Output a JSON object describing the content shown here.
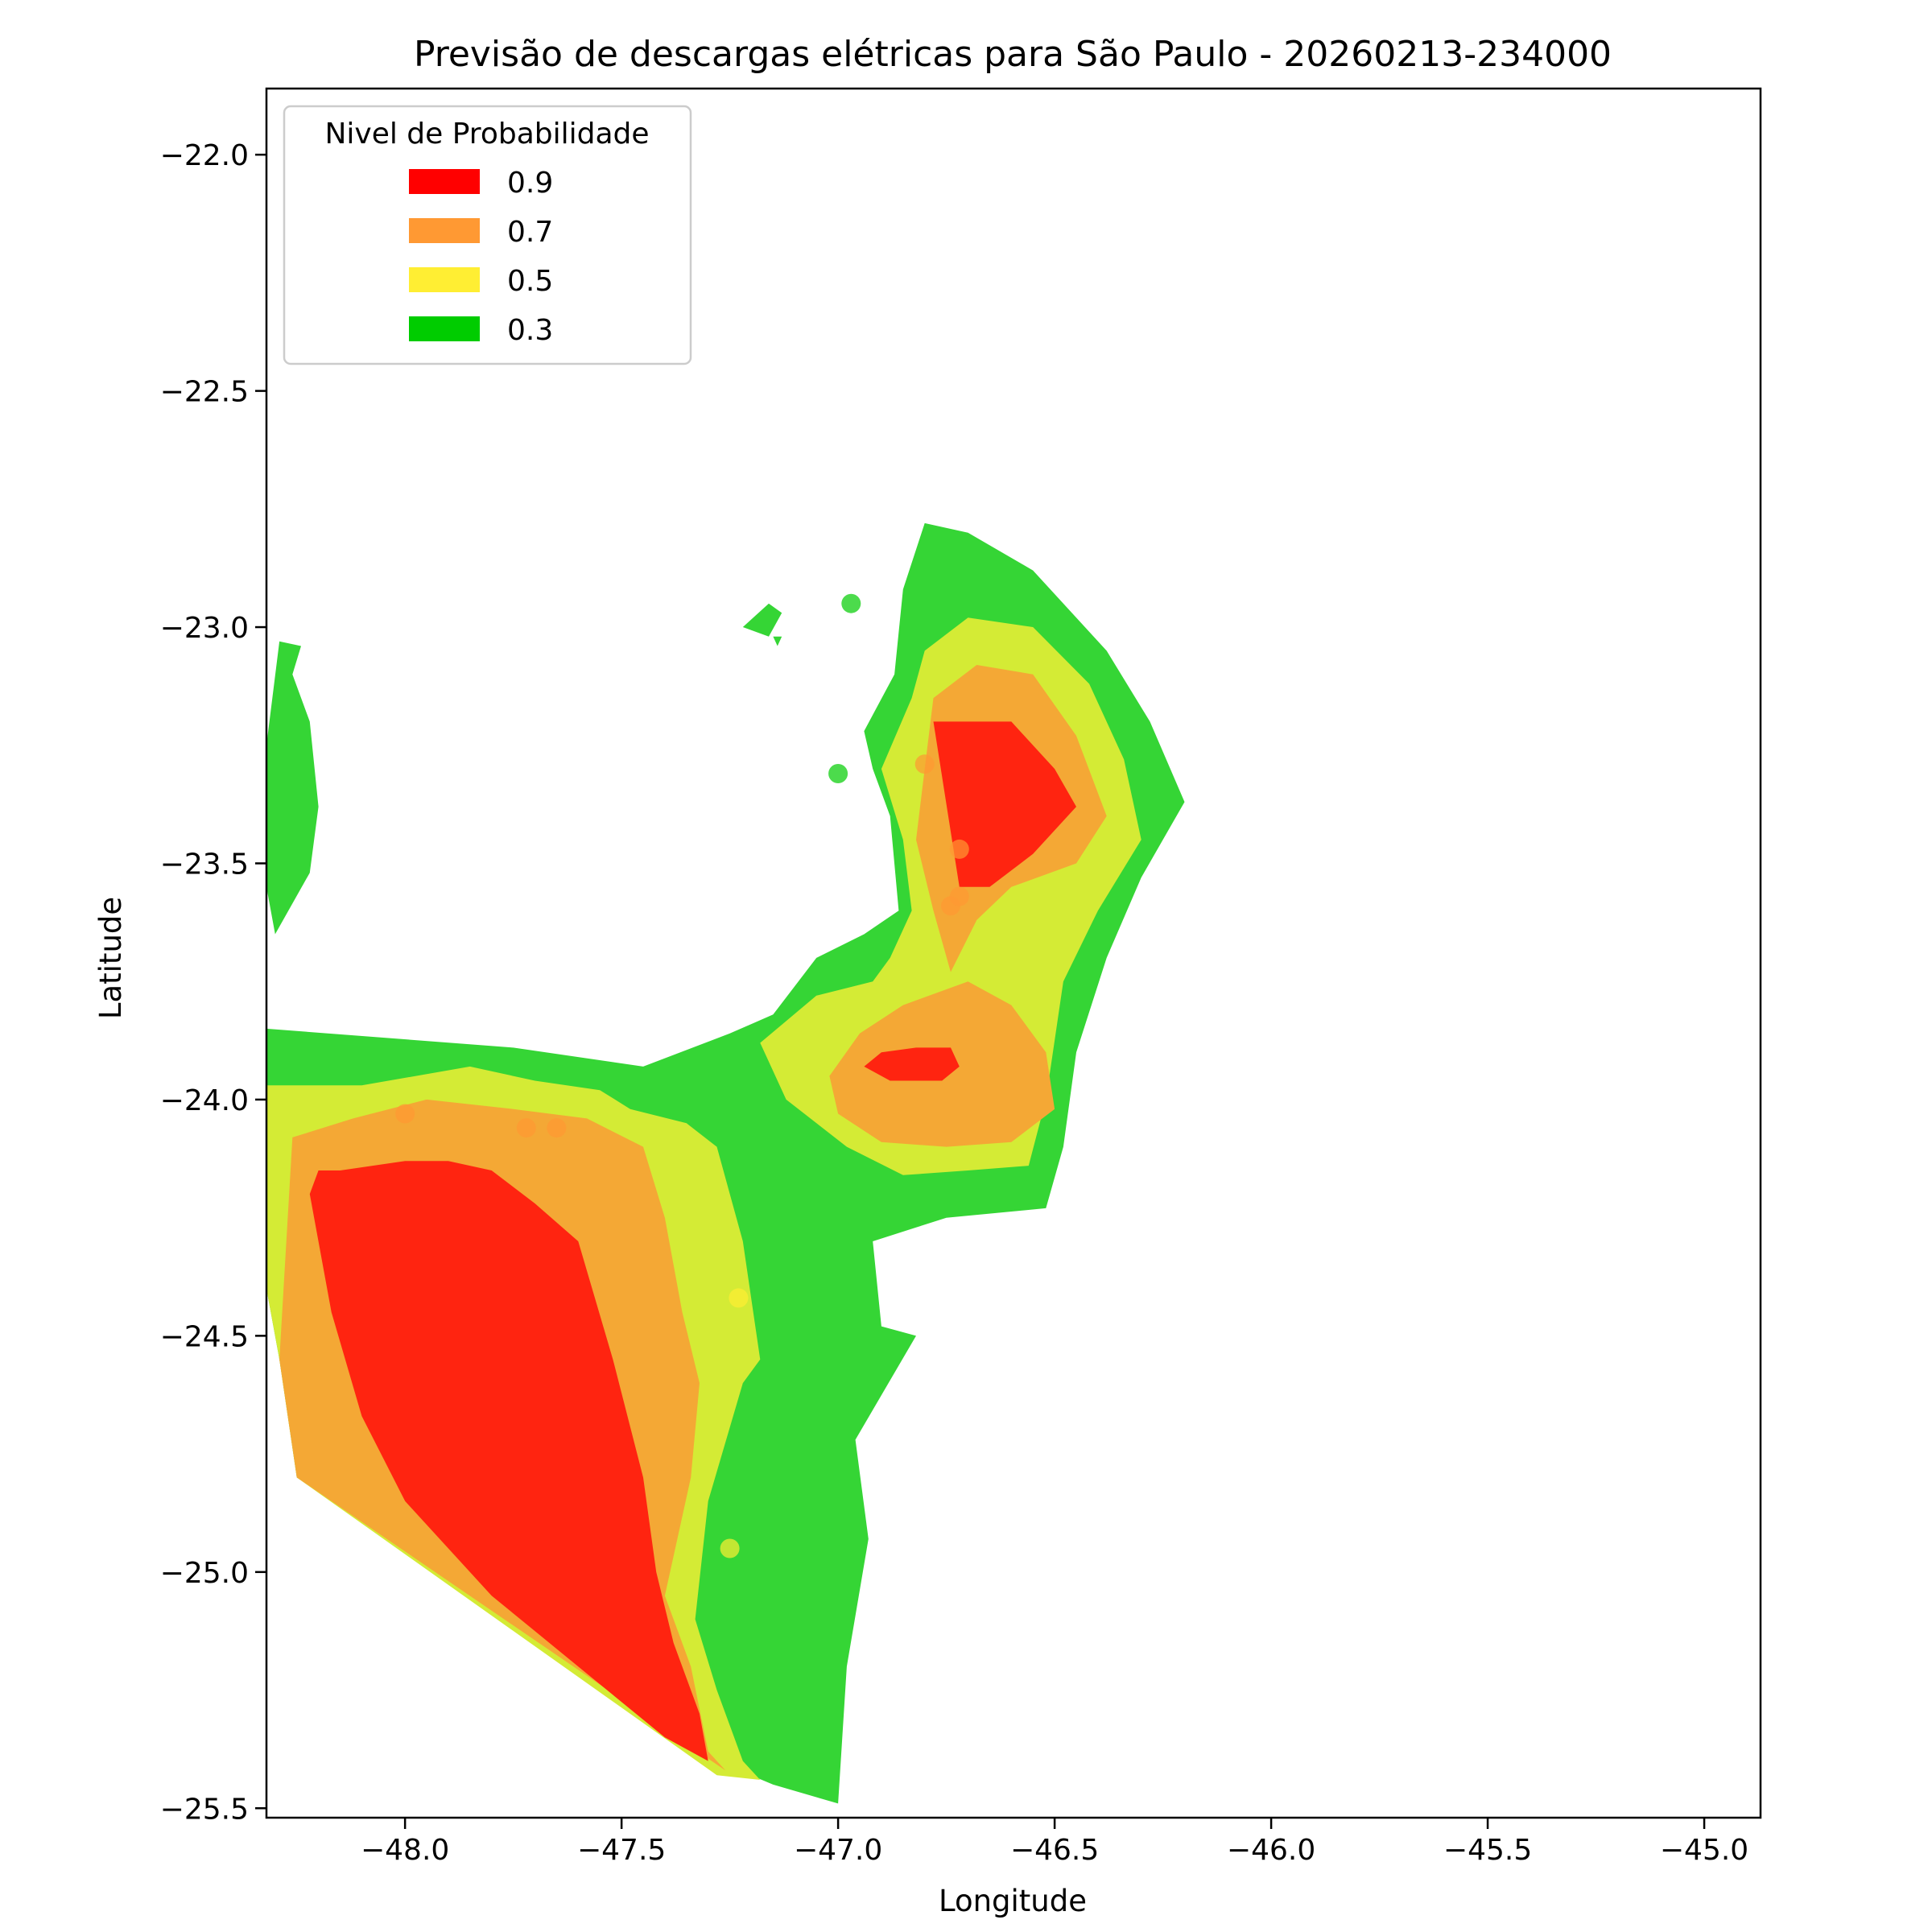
{
  "chart_data": {
    "type": "heatmap",
    "title": "Previsão de descargas elétricas para São Paulo - 20260213-234000",
    "xlabel": "Longitude",
    "ylabel": "Latitude",
    "xlim": [
      -48.32,
      -44.87
    ],
    "ylim": [
      -25.52,
      -21.86
    ],
    "x_ticks": [
      {
        "value": -48.0,
        "label": "−48.0"
      },
      {
        "value": -47.5,
        "label": "−47.5"
      },
      {
        "value": -47.0,
        "label": "−47.0"
      },
      {
        "value": -46.5,
        "label": "−46.5"
      },
      {
        "value": -46.0,
        "label": "−46.0"
      },
      {
        "value": -45.5,
        "label": "−45.5"
      },
      {
        "value": -45.0,
        "label": "−45.0"
      }
    ],
    "y_ticks": [
      {
        "value": -22.0,
        "label": "−22.0"
      },
      {
        "value": -22.5,
        "label": "−22.5"
      },
      {
        "value": -23.0,
        "label": "−23.0"
      },
      {
        "value": -23.5,
        "label": "−23.5"
      },
      {
        "value": -24.0,
        "label": "−24.0"
      },
      {
        "value": -24.5,
        "label": "−24.5"
      },
      {
        "value": -25.0,
        "label": "−25.0"
      },
      {
        "value": -25.5,
        "label": "−25.5"
      }
    ],
    "legend": {
      "title": "Nivel de Probabilidade",
      "position": "upper-left",
      "entries": [
        {
          "label": "0.9",
          "color": "#ff0000"
        },
        {
          "label": "0.7",
          "color": "#ff9933"
        },
        {
          "label": "0.5",
          "color": "#ffee33"
        },
        {
          "label": "0.3",
          "color": "#00cc00"
        }
      ]
    },
    "fill_colors": {
      "0.3": "#35d535",
      "0.5": "#d4eb35",
      "0.7": "#f4a835",
      "0.9": "#ff2410"
    },
    "regions": [
      {
        "level": "0.3",
        "coords": [
          [
            -48.32,
            -23.85
          ],
          [
            -47.75,
            -23.89
          ],
          [
            -47.45,
            -23.93
          ],
          [
            -47.25,
            -23.86
          ],
          [
            -47.15,
            -23.82
          ],
          [
            -47.05,
            -23.7
          ],
          [
            -46.94,
            -23.65
          ],
          [
            -46.86,
            -23.6
          ],
          [
            -46.88,
            -23.4
          ],
          [
            -46.92,
            -23.3
          ],
          [
            -46.94,
            -23.22
          ],
          [
            -46.87,
            -23.1
          ],
          [
            -46.85,
            -22.92
          ],
          [
            -46.8,
            -22.78
          ],
          [
            -46.7,
            -22.8
          ],
          [
            -46.55,
            -22.88
          ],
          [
            -46.38,
            -23.05
          ],
          [
            -46.28,
            -23.2
          ],
          [
            -46.2,
            -23.37
          ],
          [
            -46.3,
            -23.53
          ],
          [
            -46.38,
            -23.7
          ],
          [
            -46.45,
            -23.9
          ],
          [
            -46.48,
            -24.1
          ],
          [
            -46.52,
            -24.23
          ],
          [
            -46.75,
            -24.25
          ],
          [
            -46.92,
            -24.3
          ],
          [
            -46.9,
            -24.48
          ],
          [
            -46.82,
            -24.5
          ],
          [
            -46.96,
            -24.72
          ],
          [
            -46.93,
            -24.93
          ],
          [
            -46.98,
            -25.2
          ],
          [
            -47.0,
            -25.49
          ],
          [
            -47.15,
            -25.45
          ],
          [
            -47.28,
            -25.4
          ],
          [
            -48.25,
            -24.8
          ],
          [
            -48.29,
            -24.55
          ],
          [
            -48.32,
            -24.4
          ]
        ]
      },
      {
        "level": "0.3",
        "coords": [
          [
            -48.32,
            -23.25
          ],
          [
            -48.29,
            -23.03
          ],
          [
            -48.24,
            -23.04
          ],
          [
            -48.26,
            -23.1
          ],
          [
            -48.22,
            -23.2
          ],
          [
            -48.2,
            -23.38
          ],
          [
            -48.22,
            -23.52
          ],
          [
            -48.3,
            -23.65
          ],
          [
            -48.32,
            -23.55
          ]
        ]
      },
      {
        "level": "0.3",
        "coords": [
          [
            -47.22,
            -23.0
          ],
          [
            -47.16,
            -22.95
          ],
          [
            -47.13,
            -22.97
          ],
          [
            -47.16,
            -23.02
          ]
        ]
      },
      {
        "level": "0.3",
        "coords": [
          [
            -47.15,
            -23.02
          ],
          [
            -47.13,
            -23.02
          ],
          [
            -47.14,
            -23.04
          ]
        ]
      },
      {
        "level": "0.5",
        "coords": [
          [
            -48.32,
            -23.97
          ],
          [
            -48.1,
            -23.97
          ],
          [
            -47.85,
            -23.93
          ],
          [
            -47.7,
            -23.96
          ],
          [
            -47.55,
            -23.98
          ],
          [
            -47.48,
            -24.02
          ],
          [
            -47.35,
            -24.05
          ],
          [
            -47.28,
            -24.1
          ],
          [
            -47.22,
            -24.3
          ],
          [
            -47.18,
            -24.55
          ],
          [
            -47.22,
            -24.6
          ],
          [
            -47.3,
            -24.85
          ],
          [
            -47.33,
            -25.1
          ],
          [
            -47.28,
            -25.25
          ],
          [
            -47.22,
            -25.4
          ],
          [
            -47.18,
            -25.44
          ],
          [
            -47.28,
            -25.43
          ],
          [
            -48.25,
            -24.8
          ],
          [
            -48.29,
            -24.55
          ],
          [
            -48.32,
            -24.4
          ]
        ]
      },
      {
        "level": "0.5",
        "coords": [
          [
            -47.18,
            -23.88
          ],
          [
            -47.05,
            -23.78
          ],
          [
            -46.92,
            -23.75
          ],
          [
            -46.88,
            -23.7
          ],
          [
            -46.83,
            -23.6
          ],
          [
            -46.85,
            -23.45
          ],
          [
            -46.9,
            -23.3
          ],
          [
            -46.83,
            -23.15
          ],
          [
            -46.8,
            -23.05
          ],
          [
            -46.7,
            -22.98
          ],
          [
            -46.55,
            -23.0
          ],
          [
            -46.42,
            -23.12
          ],
          [
            -46.34,
            -23.28
          ],
          [
            -46.3,
            -23.45
          ],
          [
            -46.4,
            -23.6
          ],
          [
            -46.48,
            -23.75
          ],
          [
            -46.52,
            -24.0
          ],
          [
            -46.56,
            -24.14
          ],
          [
            -46.7,
            -24.15
          ],
          [
            -46.85,
            -24.16
          ],
          [
            -46.98,
            -24.1
          ],
          [
            -47.12,
            -24.0
          ]
        ]
      },
      {
        "level": "0.7",
        "coords": [
          [
            -48.26,
            -24.08
          ],
          [
            -48.12,
            -24.04
          ],
          [
            -47.95,
            -24.0
          ],
          [
            -47.75,
            -24.02
          ],
          [
            -47.58,
            -24.04
          ],
          [
            -47.45,
            -24.1
          ],
          [
            -47.4,
            -24.25
          ],
          [
            -47.36,
            -24.45
          ],
          [
            -47.32,
            -24.6
          ],
          [
            -47.34,
            -24.8
          ],
          [
            -47.4,
            -25.05
          ],
          [
            -47.34,
            -25.2
          ],
          [
            -47.3,
            -25.38
          ],
          [
            -47.26,
            -25.42
          ],
          [
            -48.25,
            -24.8
          ],
          [
            -48.29,
            -24.55
          ]
        ]
      },
      {
        "level": "0.7",
        "coords": [
          [
            -46.74,
            -23.73
          ],
          [
            -46.68,
            -23.62
          ],
          [
            -46.6,
            -23.55
          ],
          [
            -46.45,
            -23.5
          ],
          [
            -46.38,
            -23.4
          ],
          [
            -46.45,
            -23.23
          ],
          [
            -46.55,
            -23.1
          ],
          [
            -46.68,
            -23.08
          ],
          [
            -46.78,
            -23.15
          ],
          [
            -46.8,
            -23.3
          ],
          [
            -46.82,
            -23.45
          ],
          [
            -46.78,
            -23.6
          ]
        ]
      },
      {
        "level": "0.7",
        "coords": [
          [
            -47.02,
            -23.95
          ],
          [
            -46.95,
            -23.86
          ],
          [
            -46.85,
            -23.8
          ],
          [
            -46.7,
            -23.75
          ],
          [
            -46.6,
            -23.8
          ],
          [
            -46.52,
            -23.9
          ],
          [
            -46.5,
            -24.02
          ],
          [
            -46.6,
            -24.09
          ],
          [
            -46.75,
            -24.1
          ],
          [
            -46.9,
            -24.09
          ],
          [
            -47.0,
            -24.03
          ]
        ]
      },
      {
        "level": "0.9",
        "coords": [
          [
            -48.2,
            -24.15
          ],
          [
            -48.15,
            -24.15
          ],
          [
            -48.0,
            -24.13
          ],
          [
            -47.9,
            -24.13
          ],
          [
            -47.8,
            -24.15
          ],
          [
            -47.7,
            -24.22
          ],
          [
            -47.6,
            -24.3
          ],
          [
            -47.52,
            -24.55
          ],
          [
            -47.45,
            -24.8
          ],
          [
            -47.42,
            -25.0
          ],
          [
            -47.38,
            -25.15
          ],
          [
            -47.32,
            -25.3
          ],
          [
            -47.3,
            -25.4
          ],
          [
            -47.4,
            -25.35
          ],
          [
            -47.6,
            -25.2
          ],
          [
            -47.8,
            -25.05
          ],
          [
            -48.0,
            -24.85
          ],
          [
            -48.1,
            -24.67
          ],
          [
            -48.17,
            -24.45
          ],
          [
            -48.22,
            -24.2
          ]
        ]
      },
      {
        "level": "0.9",
        "coords": [
          [
            -46.78,
            -23.2
          ],
          [
            -46.6,
            -23.2
          ],
          [
            -46.5,
            -23.3
          ],
          [
            -46.45,
            -23.38
          ],
          [
            -46.55,
            -23.48
          ],
          [
            -46.65,
            -23.55
          ],
          [
            -46.72,
            -23.55
          ]
        ]
      },
      {
        "level": "0.9",
        "coords": [
          [
            -46.94,
            -23.93
          ],
          [
            -46.9,
            -23.9
          ],
          [
            -46.82,
            -23.89
          ],
          [
            -46.74,
            -23.89
          ],
          [
            -46.72,
            -23.93
          ],
          [
            -46.76,
            -23.96
          ],
          [
            -46.88,
            -23.96
          ]
        ]
      }
    ],
    "points": [
      {
        "lon": -46.97,
        "lat": -22.95,
        "level": "0.3"
      },
      {
        "lon": -47.0,
        "lat": -23.31,
        "level": "0.3"
      },
      {
        "lon": -46.8,
        "lat": -23.29,
        "level": "0.7"
      },
      {
        "lon": -46.72,
        "lat": -23.47,
        "level": "0.7"
      },
      {
        "lon": -46.74,
        "lat": -23.59,
        "level": "0.7"
      },
      {
        "lon": -46.72,
        "lat": -23.57,
        "level": "0.7"
      },
      {
        "lon": -48.0,
        "lat": -24.03,
        "level": "0.7"
      },
      {
        "lon": -47.65,
        "lat": -24.06,
        "level": "0.7"
      },
      {
        "lon": -47.72,
        "lat": -24.06,
        "level": "0.7"
      },
      {
        "lon": -47.23,
        "lat": -24.42,
        "level": "0.5"
      },
      {
        "lon": -47.25,
        "lat": -24.95,
        "level": "0.5"
      }
    ]
  }
}
